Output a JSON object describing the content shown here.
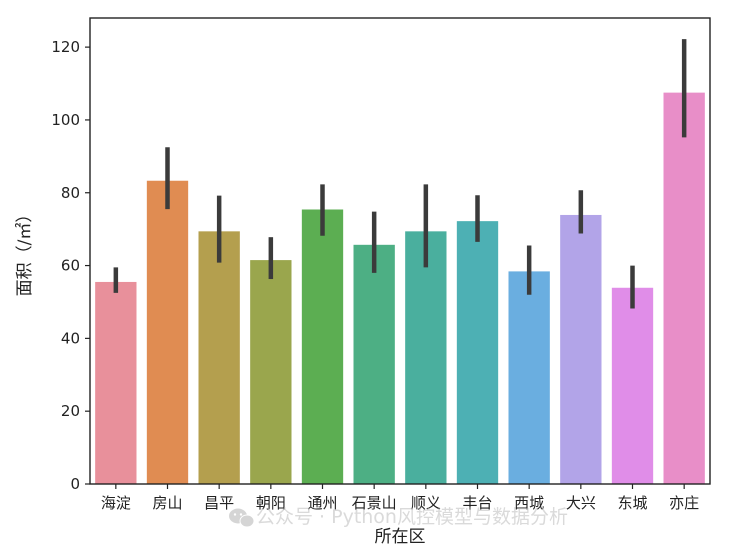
{
  "chart_data": {
    "type": "bar",
    "xlabel": "所在区",
    "ylabel": "面积（/㎡）",
    "ylim": [
      0,
      128
    ],
    "yticks": [
      0,
      20,
      40,
      60,
      80,
      100,
      120
    ],
    "grid": false,
    "categories": [
      "海淀",
      "房山",
      "昌平",
      "朝阳",
      "通州",
      "石景山",
      "顺义",
      "丰台",
      "西城",
      "大兴",
      "东城",
      "亦庄"
    ],
    "values": [
      55.5,
      83.3,
      69.4,
      61.5,
      75.4,
      65.7,
      69.4,
      72.2,
      58.4,
      73.9,
      53.9,
      107.5
    ],
    "ci_low": [
      52.5,
      75.5,
      60.8,
      56.3,
      68.2,
      58.0,
      59.5,
      66.5,
      52.0,
      68.8,
      48.2,
      95.2
    ],
    "ci_high": [
      59.5,
      92.5,
      79.2,
      67.8,
      82.3,
      74.8,
      82.3,
      79.3,
      65.5,
      80.7,
      60.0,
      122.2
    ],
    "colors": [
      "#e8909b",
      "#e08c52",
      "#b49f4e",
      "#9aa64d",
      "#5cae52",
      "#4daf84",
      "#4aaf9e",
      "#4db0b4",
      "#6aaee0",
      "#b2a4e8",
      "#e08de8",
      "#e88ec8"
    ],
    "errorbar_color": "#3b3b3b"
  },
  "watermark": {
    "icon": "wechat-icon",
    "text": "公众号 · Python风控模型与数据分析"
  }
}
